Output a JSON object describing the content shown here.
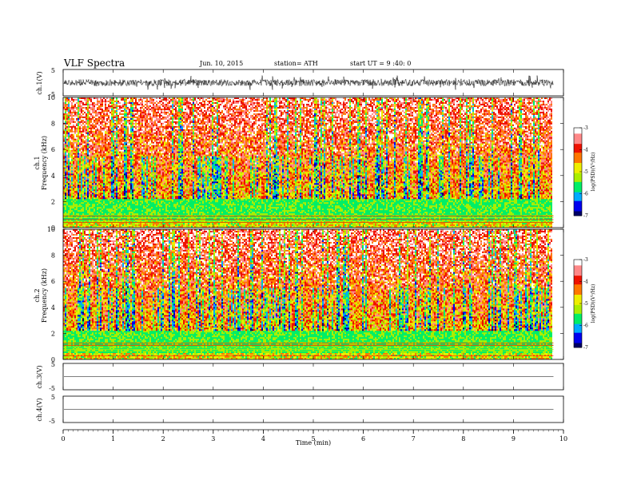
{
  "header": {
    "title": "VLF  Spectra",
    "date": "Jun. 10, 2015",
    "station": "station= ATH",
    "start_ut": "start  UT  =   9  :40: 0"
  },
  "chart_data": [
    {
      "type": "line",
      "ylabel": "ch.1(V)",
      "yticks": [
        "5",
        "-5"
      ],
      "ylim": [
        -5,
        5
      ],
      "x_unit": "min",
      "xlim": [
        0,
        10
      ],
      "signal": {
        "kind": "noisy waveform",
        "mean": 0,
        "amplitude": 2.5,
        "x_end": 9.8
      }
    },
    {
      "type": "heatmap",
      "ylabel": [
        "ch.1",
        "Frequency  (kHz)"
      ],
      "yticks": [
        "10",
        "8",
        "6",
        "4",
        "2",
        "0"
      ],
      "ylim": [
        0,
        10
      ],
      "xlim": [
        0,
        10
      ],
      "x_end": 9.8,
      "colorbar": {
        "label": "log(PSD)(V²/Hz)",
        "ticks": [
          "-3",
          "-4",
          "-5",
          "-6",
          "-7"
        ],
        "range": [
          -7,
          -3
        ]
      }
    },
    {
      "type": "heatmap",
      "ylabel": [
        "ch.2",
        "Frequency  (kHz)"
      ],
      "yticks": [
        "10",
        "8",
        "6",
        "4",
        "2",
        "0"
      ],
      "ylim": [
        0,
        10
      ],
      "xlim": [
        0,
        10
      ],
      "x_end": 9.8,
      "colorbar": {
        "label": "log(PSD)(V²/Hz)",
        "ticks": [
          "-3",
          "-4",
          "-5",
          "-6",
          "-7"
        ],
        "range": [
          -7,
          -3
        ]
      }
    },
    {
      "type": "line",
      "ylabel": "ch.3(V)",
      "yticks": [
        "5",
        "-5"
      ],
      "ylim": [
        -5,
        5
      ],
      "xlim": [
        0,
        10
      ],
      "signal": {
        "kind": "flat",
        "level": 0,
        "x_end": 9.8
      }
    },
    {
      "type": "line",
      "ylabel": "ch.4(V)",
      "yticks": [
        "5",
        "-5"
      ],
      "ylim": [
        -5,
        5
      ],
      "xlim": [
        0,
        10
      ],
      "signal": {
        "kind": "flat",
        "level": 0,
        "x_end": 9.8
      }
    }
  ],
  "xaxis": {
    "label": "Time  (min)",
    "ticks": [
      "0",
      "1",
      "2",
      "3",
      "4",
      "5",
      "6",
      "7",
      "8",
      "9",
      "10"
    ],
    "xlim": [
      0,
      10
    ]
  },
  "colorscale": [
    "#000066",
    "#0000ee",
    "#00aaff",
    "#00ee66",
    "#aaee00",
    "#eeee00",
    "#ff7700",
    "#ee1100",
    "#ff8888",
    "#ffffff"
  ]
}
